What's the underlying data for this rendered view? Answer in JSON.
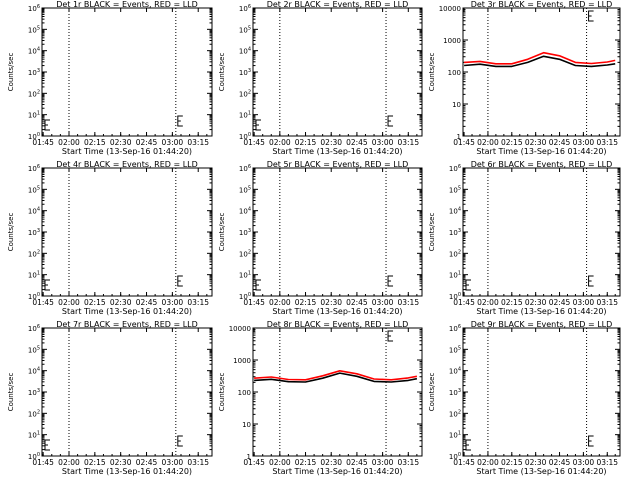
{
  "colors": {
    "events": "#000000",
    "lld": "#ff0000",
    "axis": "#000000",
    "background": "#ffffff"
  },
  "xaxis_title": "Start Time (13-Sep-16 01:44:20)",
  "ylabel": "Counts/sec",
  "x_tick_labels": [
    "01:45",
    "02:00",
    "02:15",
    "02:30",
    "02:45",
    "03:00",
    "03:15"
  ],
  "chart_data": [
    {
      "type": "line",
      "title": "Det 1r BLACK = Events, RED = LLD",
      "xlabel": "Start Time (13-Sep-16 01:44:20)",
      "ylabel": "Counts/sec",
      "yscale": "log",
      "ylim": [
        1,
        1000000.0
      ],
      "ytick_labels": [
        "10^0",
        "10^1",
        "10^2",
        "10^3",
        "10^4",
        "10^5",
        "10^6"
      ],
      "xlim": [
        "01:44:20",
        "03:23:00"
      ],
      "x_tick_labels": [
        "01:45",
        "02:00",
        "02:15",
        "02:30",
        "02:45",
        "03:00",
        "03:15"
      ],
      "vlines": [
        "02:00",
        "03:02"
      ],
      "series": []
    },
    {
      "type": "line",
      "title": "Det 2r BLACK = Events, RED = LLD",
      "xlabel": "Start Time (13-Sep-16 01:44:20)",
      "ylabel": "Counts/sec",
      "yscale": "log",
      "ylim": [
        1,
        1000000.0
      ],
      "ytick_labels": [
        "10^0",
        "10^1",
        "10^2",
        "10^3",
        "10^4",
        "10^5",
        "10^6"
      ],
      "xlim": [
        "01:44:20",
        "03:23:00"
      ],
      "x_tick_labels": [
        "01:45",
        "02:00",
        "02:15",
        "02:30",
        "02:45",
        "03:00",
        "03:15"
      ],
      "vlines": [
        "02:00",
        "03:02"
      ],
      "series": []
    },
    {
      "type": "line",
      "title": "Det 3r BLACK = Events, RED = LLD",
      "xlabel": "Start Time (13-Sep-16 01:44:20)",
      "ylabel": "Counts/sec",
      "yscale": "log",
      "ylim": [
        1,
        10000
      ],
      "ytick_labels": [
        "1",
        "10",
        "100",
        "1000",
        "10000"
      ],
      "xlim": [
        "01:44:20",
        "03:23:00"
      ],
      "x_tick_labels": [
        "01:45",
        "02:00",
        "02:15",
        "02:30",
        "02:45",
        "03:00",
        "03:15"
      ],
      "vlines": [
        "02:00",
        "03:02"
      ],
      "series": [
        {
          "color": "#000000",
          "x": [
            "01:45",
            "01:55",
            "02:05",
            "02:15",
            "02:25",
            "02:35",
            "02:45",
            "02:55",
            "03:05",
            "03:15",
            "03:20"
          ],
          "values": [
            160,
            175,
            150,
            150,
            200,
            310,
            250,
            160,
            150,
            165,
            180
          ]
        },
        {
          "color": "#ff0000",
          "x": [
            "01:45",
            "01:55",
            "02:05",
            "02:15",
            "02:25",
            "02:35",
            "02:45",
            "02:55",
            "03:05",
            "03:15",
            "03:20"
          ],
          "values": [
            200,
            215,
            180,
            180,
            250,
            400,
            320,
            200,
            185,
            205,
            230
          ]
        }
      ]
    },
    {
      "type": "line",
      "title": "Det 4r BLACK = Events, RED = LLD",
      "xlabel": "Start Time (13-Sep-16 01:44:20)",
      "ylabel": "Counts/sec",
      "yscale": "log",
      "ylim": [
        1,
        1000000.0
      ],
      "ytick_labels": [
        "10^0",
        "10^1",
        "10^2",
        "10^3",
        "10^4",
        "10^5",
        "10^6"
      ],
      "xlim": [
        "01:44:20",
        "03:23:00"
      ],
      "x_tick_labels": [
        "01:45",
        "02:00",
        "02:15",
        "02:30",
        "02:45",
        "03:00",
        "03:15"
      ],
      "vlines": [
        "02:00",
        "03:02"
      ],
      "series": []
    },
    {
      "type": "line",
      "title": "Det 5r BLACK = Events, RED = LLD",
      "xlabel": "Start Time (13-Sep-16 01:44:20)",
      "ylabel": "Counts/sec",
      "yscale": "log",
      "ylim": [
        1,
        1000000.0
      ],
      "ytick_labels": [
        "10^0",
        "10^1",
        "10^2",
        "10^3",
        "10^4",
        "10^5",
        "10^6"
      ],
      "xlim": [
        "01:44:20",
        "03:23:00"
      ],
      "x_tick_labels": [
        "01:45",
        "02:00",
        "02:15",
        "02:30",
        "02:45",
        "03:00",
        "03:15"
      ],
      "vlines": [
        "02:00",
        "03:02"
      ],
      "series": []
    },
    {
      "type": "line",
      "title": "Det 6r BLACK = Events, RED = LLD",
      "xlabel": "Start Time (13-Sep-16 01:44:20)",
      "ylabel": "Counts/sec",
      "yscale": "log",
      "ylim": [
        1,
        1000000.0
      ],
      "ytick_labels": [
        "10^0",
        "10^1",
        "10^2",
        "10^3",
        "10^4",
        "10^5",
        "10^6"
      ],
      "xlim": [
        "01:44:20",
        "03:23:00"
      ],
      "x_tick_labels": [
        "01:45",
        "02:00",
        "02:15",
        "02:30",
        "02:45",
        "03:00",
        "03:15"
      ],
      "vlines": [
        "02:00",
        "03:02"
      ],
      "series": []
    },
    {
      "type": "line",
      "title": "Det 7r BLACK = Events, RED = LLD",
      "xlabel": "Start Time (13-Sep-16 01:44:20)",
      "ylabel": "Counts/sec",
      "yscale": "log",
      "ylim": [
        1,
        1000000.0
      ],
      "ytick_labels": [
        "10^0",
        "10^1",
        "10^2",
        "10^3",
        "10^4",
        "10^5",
        "10^6"
      ],
      "xlim": [
        "01:44:20",
        "03:23:00"
      ],
      "x_tick_labels": [
        "01:45",
        "02:00",
        "02:15",
        "02:30",
        "02:45",
        "03:00",
        "03:15"
      ],
      "vlines": [
        "02:00",
        "03:02"
      ],
      "series": []
    },
    {
      "type": "line",
      "title": "Det 8r BLACK = Events, RED = LLD",
      "xlabel": "Start Time (13-Sep-16 01:44:20)",
      "ylabel": "Counts/sec",
      "yscale": "log",
      "ylim": [
        1,
        10000
      ],
      "ytick_labels": [
        "1",
        "10",
        "100",
        "1000",
        "10000"
      ],
      "xlim": [
        "01:44:20",
        "03:23:00"
      ],
      "x_tick_labels": [
        "01:45",
        "02:00",
        "02:15",
        "02:30",
        "02:45",
        "03:00",
        "03:15"
      ],
      "vlines": [
        "02:00",
        "03:02"
      ],
      "series": [
        {
          "color": "#000000",
          "x": [
            "01:45",
            "01:55",
            "02:05",
            "02:15",
            "02:25",
            "02:35",
            "02:45",
            "02:55",
            "03:05",
            "03:15",
            "03:20"
          ],
          "values": [
            230,
            250,
            210,
            205,
            270,
            390,
            310,
            215,
            205,
            230,
            260
          ]
        },
        {
          "color": "#ff0000",
          "x": [
            "01:45",
            "01:55",
            "02:05",
            "02:15",
            "02:25",
            "02:35",
            "02:45",
            "02:55",
            "03:05",
            "03:15",
            "03:20"
          ],
          "values": [
            270,
            295,
            245,
            240,
            320,
            460,
            370,
            255,
            240,
            275,
            310
          ]
        }
      ]
    },
    {
      "type": "line",
      "title": "Det 9r BLACK = Events, RED = LLD",
      "xlabel": "Start Time (13-Sep-16 01:44:20)",
      "ylabel": "Counts/sec",
      "yscale": "log",
      "ylim": [
        1,
        1000000.0
      ],
      "ytick_labels": [
        "10^0",
        "10^1",
        "10^2",
        "10^3",
        "10^4",
        "10^5",
        "10^6"
      ],
      "xlim": [
        "01:44:20",
        "03:23:00"
      ],
      "x_tick_labels": [
        "01:45",
        "02:00",
        "02:15",
        "02:30",
        "02:45",
        "03:00",
        "03:15"
      ],
      "vlines": [
        "02:00",
        "03:02"
      ],
      "series": []
    }
  ]
}
